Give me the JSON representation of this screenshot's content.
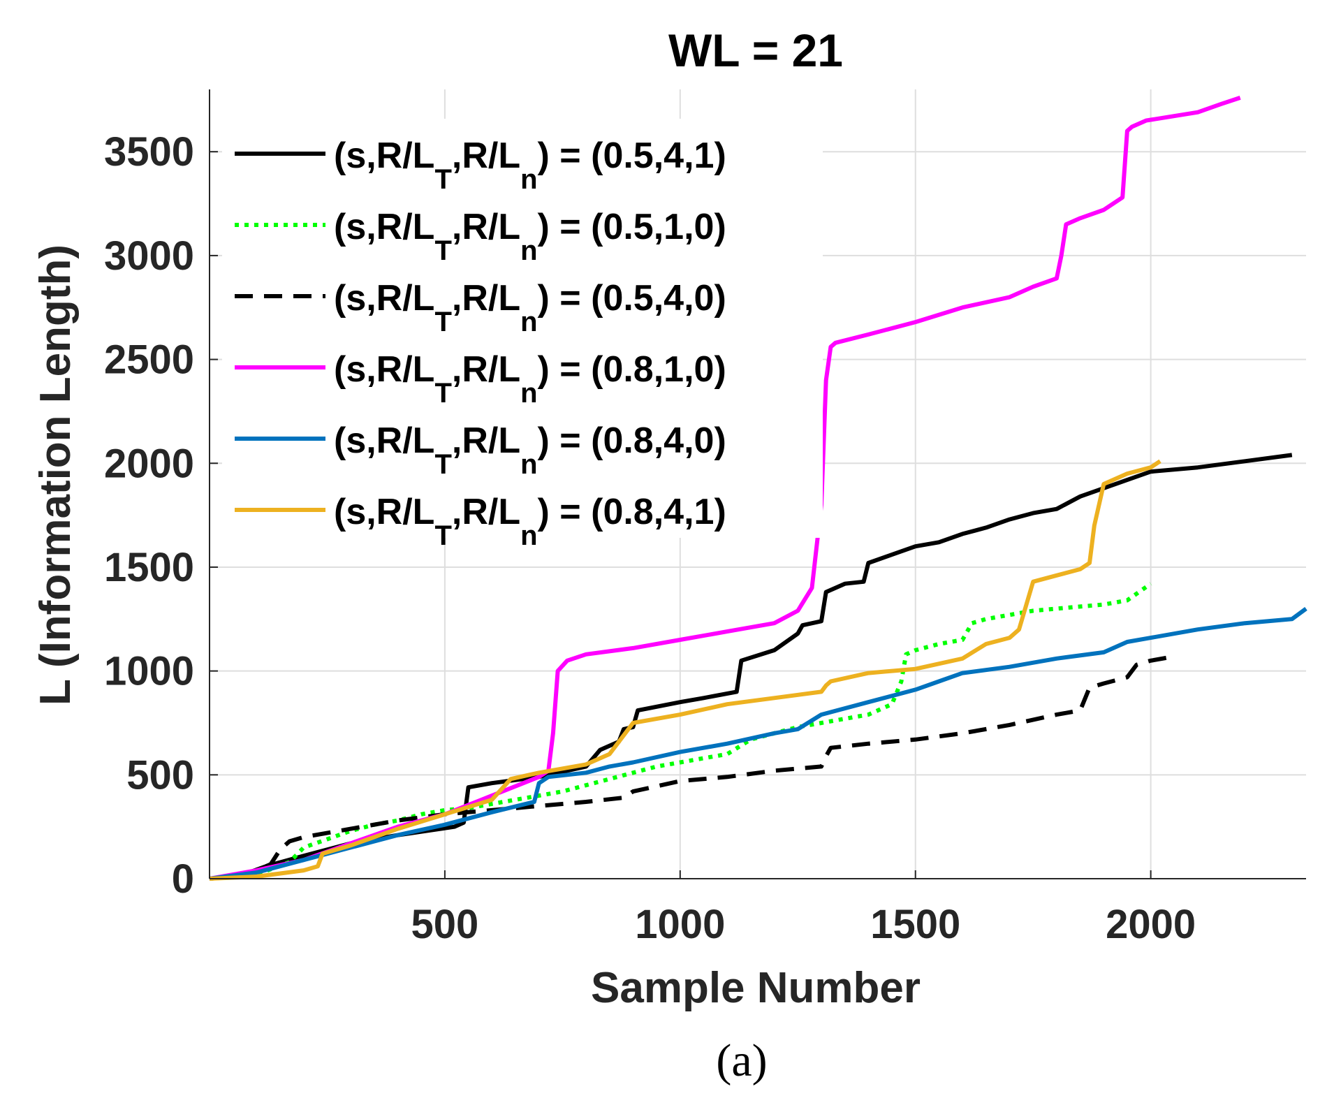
{
  "chart_data": {
    "type": "line",
    "title": "WL = 21",
    "xlabel": "Sample Number",
    "ylabel": "L (Information Length)",
    "caption": "(a)",
    "xlim": [
      0,
      2330
    ],
    "ylim": [
      0,
      3800
    ],
    "xticks": [
      500,
      1000,
      1500,
      2000
    ],
    "yticks": [
      0,
      500,
      1000,
      1500,
      2000,
      2500,
      3000,
      3500
    ],
    "grid": true,
    "legend_position": "top-left",
    "series": [
      {
        "name": "(s,R/LT,R/Ln) = (0.5,4,1)",
        "label_parts": {
          "lead": "(s,R/L",
          "sub1": "T",
          "mid": ",R/L",
          "sub2": "n",
          "tail": ") = (0.5,4,1)"
        },
        "color": "#000000",
        "style": "solid",
        "x": [
          0,
          60,
          120,
          200,
          300,
          400,
          460,
          520,
          540,
          550,
          600,
          700,
          800,
          830,
          870,
          880,
          900,
          910,
          1000,
          1050,
          1120,
          1130,
          1200,
          1250,
          1260,
          1300,
          1310,
          1350,
          1390,
          1400,
          1450,
          1500,
          1550,
          1600,
          1650,
          1700,
          1750,
          1800,
          1850,
          1900,
          1950,
          2000,
          2100,
          2200,
          2300
        ],
        "y": [
          0,
          10,
          60,
          110,
          170,
          210,
          230,
          250,
          270,
          440,
          460,
          490,
          540,
          620,
          660,
          720,
          730,
          810,
          850,
          870,
          900,
          1050,
          1100,
          1180,
          1220,
          1240,
          1380,
          1420,
          1430,
          1520,
          1560,
          1600,
          1620,
          1660,
          1690,
          1730,
          1760,
          1780,
          1840,
          1880,
          1920,
          1960,
          1980,
          2010,
          2040
        ]
      },
      {
        "name": "(s,R/LT,R/Ln) = (0.5,1,0)",
        "label_parts": {
          "lead": "(s,R/L",
          "sub1": "T",
          "mid": ",R/L",
          "sub2": "n",
          "tail": ") = (0.5,1,0)"
        },
        "color": "#00ff00",
        "style": "dotted",
        "x": [
          0,
          100,
          170,
          200,
          250,
          300,
          350,
          400,
          450,
          500,
          550,
          600,
          650,
          700,
          750,
          800,
          850,
          900,
          950,
          1000,
          1050,
          1100,
          1150,
          1200,
          1250,
          1300,
          1350,
          1400,
          1450,
          1470,
          1480,
          1500,
          1550,
          1600,
          1620,
          1650,
          1700,
          1750,
          1800,
          1850,
          1900,
          1950,
          2000
        ],
        "y": [
          0,
          20,
          80,
          150,
          190,
          230,
          260,
          280,
          310,
          330,
          340,
          360,
          380,
          400,
          420,
          450,
          480,
          510,
          540,
          560,
          580,
          600,
          670,
          700,
          730,
          750,
          770,
          790,
          840,
          950,
          1080,
          1100,
          1130,
          1150,
          1230,
          1250,
          1270,
          1290,
          1300,
          1310,
          1320,
          1340,
          1420
        ]
      },
      {
        "name": "(s,R/LT,R/Ln) = (0.5,4,0)",
        "label_parts": {
          "lead": "(s,R/L",
          "sub1": "T",
          "mid": ",R/L",
          "sub2": "n",
          "tail": ") = (0.5,4,0)"
        },
        "color": "#000000",
        "style": "dashed",
        "x": [
          0,
          80,
          130,
          150,
          170,
          200,
          300,
          400,
          500,
          550,
          600,
          700,
          800,
          880,
          900,
          980,
          1000,
          1100,
          1200,
          1300,
          1310,
          1320,
          1400,
          1500,
          1600,
          1700,
          1800,
          1850,
          1870,
          1900,
          1950,
          1970,
          2000,
          2050
        ],
        "y": [
          0,
          20,
          70,
          140,
          180,
          200,
          240,
          280,
          310,
          320,
          330,
          350,
          370,
          390,
          420,
          460,
          470,
          490,
          520,
          540,
          590,
          630,
          650,
          670,
          700,
          740,
          790,
          810,
          920,
          940,
          970,
          1030,
          1050,
          1070
        ]
      },
      {
        "name": "(s,R/LT,R/Ln) = (0.8,1,0)",
        "label_parts": {
          "lead": "(s,R/L",
          "sub1": "T",
          "mid": ",R/L",
          "sub2": "n",
          "tail": ") = (0.8,1,0)"
        },
        "color": "#ff00ff",
        "style": "solid",
        "x": [
          0,
          100,
          200,
          300,
          400,
          500,
          600,
          700,
          720,
          730,
          740,
          760,
          800,
          900,
          1000,
          1100,
          1200,
          1250,
          1280,
          1300,
          1310,
          1320,
          1330,
          1400,
          1500,
          1600,
          1700,
          1750,
          1800,
          1810,
          1820,
          1850,
          1900,
          1940,
          1950,
          1960,
          1990,
          2100,
          2150,
          2190
        ],
        "y": [
          0,
          40,
          90,
          170,
          250,
          310,
          400,
          490,
          520,
          700,
          1000,
          1050,
          1080,
          1110,
          1150,
          1190,
          1230,
          1290,
          1400,
          1800,
          2400,
          2560,
          2580,
          2620,
          2680,
          2750,
          2800,
          2850,
          2890,
          3000,
          3150,
          3180,
          3220,
          3280,
          3600,
          3620,
          3650,
          3690,
          3730,
          3760
        ]
      },
      {
        "name": "(s,R/LT,R/Ln) = (0.8,4,0)",
        "label_parts": {
          "lead": "(s,R/L",
          "sub1": "T",
          "mid": ",R/L",
          "sub2": "n",
          "tail": ") = (0.8,4,0)"
        },
        "color": "#0072bd",
        "style": "solid",
        "x": [
          0,
          100,
          200,
          300,
          400,
          500,
          600,
          690,
          700,
          720,
          800,
          850,
          900,
          1000,
          1100,
          1200,
          1250,
          1300,
          1400,
          1500,
          1550,
          1600,
          1700,
          1800,
          1900,
          1950,
          2000,
          2100,
          2200,
          2300,
          2330
        ],
        "y": [
          0,
          30,
          90,
          150,
          210,
          260,
          320,
          370,
          460,
          490,
          510,
          540,
          560,
          610,
          650,
          700,
          720,
          790,
          850,
          910,
          950,
          990,
          1020,
          1060,
          1090,
          1140,
          1160,
          1200,
          1230,
          1250,
          1300
        ]
      },
      {
        "name": "(s,R/LT,R/Ln) = (0.8,4,1)",
        "label_parts": {
          "lead": "(s,R/L",
          "sub1": "T",
          "mid": ",R/L",
          "sub2": "n",
          "tail": ") = (0.8,4,1)"
        },
        "color": "#edb120",
        "style": "solid",
        "x": [
          0,
          100,
          200,
          230,
          240,
          300,
          400,
          500,
          600,
          640,
          700,
          800,
          850,
          880,
          900,
          1000,
          1100,
          1200,
          1300,
          1310,
          1320,
          1400,
          1500,
          1600,
          1650,
          1700,
          1720,
          1750,
          1800,
          1850,
          1870,
          1880,
          1900,
          1950,
          2000,
          2020
        ],
        "y": [
          0,
          10,
          40,
          60,
          120,
          160,
          240,
          310,
          380,
          480,
          510,
          550,
          600,
          690,
          750,
          790,
          840,
          870,
          900,
          930,
          950,
          990,
          1010,
          1060,
          1130,
          1160,
          1200,
          1430,
          1460,
          1490,
          1520,
          1700,
          1900,
          1950,
          1980,
          2010
        ]
      }
    ]
  }
}
